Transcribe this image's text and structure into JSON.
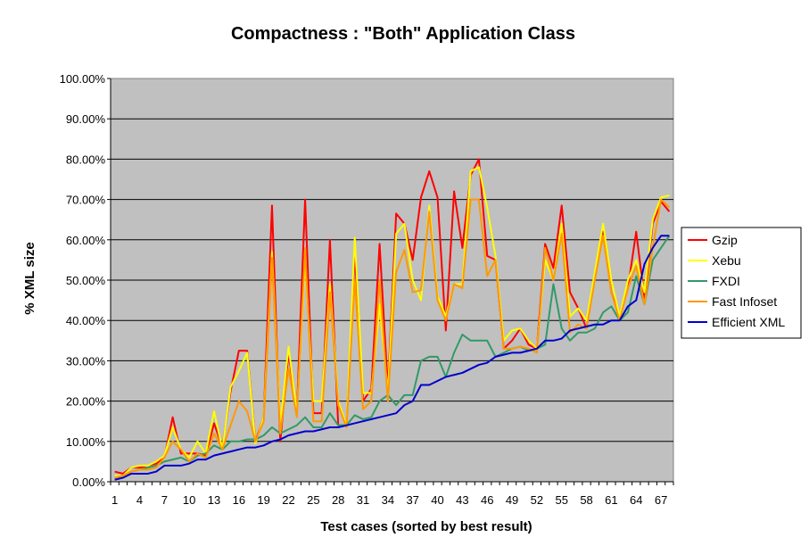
{
  "chart_data": {
    "type": "line",
    "title": "Compactness : \"Both\" Application Class",
    "xlabel": "Test cases (sorted by best result)",
    "ylabel": "% XML size",
    "x": [
      1,
      2,
      3,
      4,
      5,
      6,
      7,
      8,
      9,
      10,
      11,
      12,
      13,
      14,
      15,
      16,
      17,
      18,
      19,
      20,
      21,
      22,
      23,
      24,
      25,
      26,
      27,
      28,
      29,
      30,
      31,
      32,
      33,
      34,
      35,
      36,
      37,
      38,
      39,
      40,
      41,
      42,
      43,
      44,
      45,
      46,
      47,
      48,
      49,
      50,
      51,
      52,
      53,
      54,
      55,
      56,
      57,
      58,
      59,
      60,
      61,
      62,
      63,
      64,
      65,
      66,
      67,
      68
    ],
    "x_tick_labels": [
      "1",
      "4",
      "7",
      "10",
      "13",
      "16",
      "19",
      "22",
      "25",
      "28",
      "31",
      "34",
      "37",
      "40",
      "43",
      "46",
      "49",
      "52",
      "55",
      "58",
      "61",
      "64",
      "67"
    ],
    "y_tick_labels": [
      "0.00%",
      "10.00%",
      "20.00%",
      "30.00%",
      "40.00%",
      "50.00%",
      "60.00%",
      "70.00%",
      "80.00%",
      "90.00%",
      "100.00%"
    ],
    "ylim": [
      0,
      100
    ],
    "grid": "horizontal",
    "legend_position": "right",
    "plot_background": "#c0c0c0",
    "series": [
      {
        "name": "Gzip",
        "color": "#ff0000",
        "values": [
          2.5,
          2,
          3.5,
          3.5,
          4,
          4.5,
          6,
          16,
          7,
          7,
          7,
          6.5,
          14.5,
          8.5,
          22.5,
          32.5,
          32.5,
          10,
          16,
          68.5,
          10,
          32,
          17,
          70,
          17,
          17,
          60,
          14,
          14,
          57,
          20,
          23,
          59,
          23,
          66.5,
          64,
          55,
          70.5,
          77,
          70.5,
          37.5,
          72,
          58,
          76,
          80,
          56,
          55,
          33,
          35,
          38,
          34,
          33,
          59,
          53,
          68.5,
          47,
          43,
          38,
          51,
          62,
          47,
          41,
          48,
          62,
          45.5,
          64,
          69.5,
          67
        ]
      },
      {
        "name": "Xebu",
        "color": "#ffff00",
        "values": [
          1.5,
          1.5,
          3.5,
          4,
          4,
          5,
          6.5,
          13.5,
          8,
          6,
          10,
          7,
          17.5,
          8,
          23.5,
          27.5,
          32,
          9.5,
          16,
          57,
          14,
          33.5,
          17,
          55,
          20,
          20,
          49,
          20,
          14,
          60.5,
          22,
          22,
          44,
          22,
          61.5,
          64,
          50,
          45,
          68.5,
          46,
          41,
          49,
          49,
          77,
          78,
          68,
          56,
          35,
          37.5,
          38,
          35,
          33,
          55,
          50,
          64,
          41,
          43,
          40,
          52,
          64,
          50,
          41,
          50,
          55,
          47,
          65,
          70.5,
          71
        ]
      },
      {
        "name": "FXDI",
        "color": "#339966",
        "values": [
          1,
          1.5,
          2.5,
          3,
          3.5,
          4,
          5,
          5.5,
          6,
          5,
          6.5,
          7,
          9,
          8,
          10,
          10,
          10.5,
          10.5,
          11.5,
          13.5,
          12,
          13,
          14,
          16,
          13.5,
          13.5,
          17,
          14,
          14,
          16.5,
          15.5,
          16,
          20,
          21.5,
          19,
          21.5,
          21.5,
          30,
          31,
          31,
          26,
          32,
          36.5,
          35,
          35,
          35,
          31,
          32,
          33,
          33.5,
          32.5,
          33,
          34,
          49,
          38,
          35,
          37,
          37,
          38,
          42,
          43.5,
          40,
          42,
          51,
          44,
          55,
          58,
          61
        ]
      },
      {
        "name": "Fast Infoset",
        "color": "#ff9900",
        "values": [
          1,
          1.5,
          2.5,
          3,
          3,
          3.5,
          6,
          10,
          8,
          5,
          7,
          6,
          12,
          8,
          14,
          20,
          17.5,
          10,
          15,
          55.5,
          12,
          28,
          16,
          58,
          15,
          15,
          47,
          19,
          13.5,
          50,
          18,
          20,
          50,
          20,
          52,
          57.5,
          47,
          47.5,
          67,
          45,
          40,
          49,
          48,
          70,
          70,
          51,
          55,
          33,
          33,
          33.5,
          33,
          32,
          58,
          50,
          61.5,
          37,
          39,
          38,
          50,
          61,
          47,
          40,
          48,
          53.5,
          44,
          58,
          70,
          68
        ]
      },
      {
        "name": "Efficient XML",
        "color": "#0000cc",
        "values": [
          0.5,
          1,
          2,
          2,
          2,
          2.5,
          4,
          4,
          4,
          4.5,
          5.5,
          5.5,
          6.5,
          7,
          7.5,
          8,
          8.5,
          8.5,
          9,
          10,
          10.5,
          11.5,
          12,
          12.5,
          12.5,
          13,
          13.5,
          13.5,
          14,
          14.5,
          15,
          15.5,
          16,
          16.5,
          17,
          19,
          20,
          24,
          24,
          25,
          26,
          26.5,
          27,
          28,
          29,
          29.5,
          31,
          31.5,
          32,
          32,
          32.5,
          33,
          35,
          35,
          35.5,
          37.5,
          38,
          38.5,
          39,
          39,
          40,
          40,
          43.5,
          45,
          54,
          58,
          61,
          61
        ]
      }
    ]
  }
}
